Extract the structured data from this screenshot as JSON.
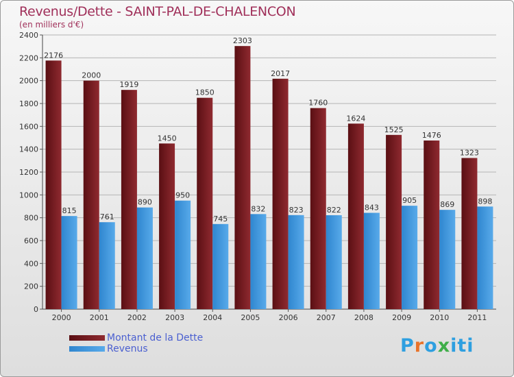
{
  "chart_data": {
    "type": "bar",
    "title": "Revenus/Dette - SAINT-PAL-DE-CHALENCON",
    "subtitle": "(en milliers d'€)",
    "categories": [
      "2000",
      "2001",
      "2002",
      "2003",
      "2004",
      "2005",
      "2006",
      "2007",
      "2008",
      "2009",
      "2010",
      "2011"
    ],
    "series": [
      {
        "name": "Montant de la Dette",
        "color": "#7b1a1f",
        "values": [
          2176,
          2000,
          1919,
          1450,
          1850,
          2303,
          2017,
          1760,
          1624,
          1525,
          1476,
          1323
        ]
      },
      {
        "name": "Revenus",
        "color": "#3d95da",
        "values": [
          815,
          761,
          890,
          950,
          745,
          832,
          823,
          822,
          843,
          905,
          869,
          898
        ]
      }
    ],
    "ylim": [
      0,
      2400
    ],
    "yticks": [
      0,
      200,
      400,
      600,
      800,
      1000,
      1200,
      1400,
      1600,
      1800,
      2000,
      2200,
      2400
    ],
    "grid": true,
    "legend_position": "bottom-left"
  },
  "logo": {
    "text": "Proxiti",
    "colors": [
      "#2e9fe0",
      "#e8732a",
      "#2e9fe0",
      "#3fae4a",
      "#2e9fe0",
      "#2e9fe0",
      "#2e9fe0"
    ]
  }
}
